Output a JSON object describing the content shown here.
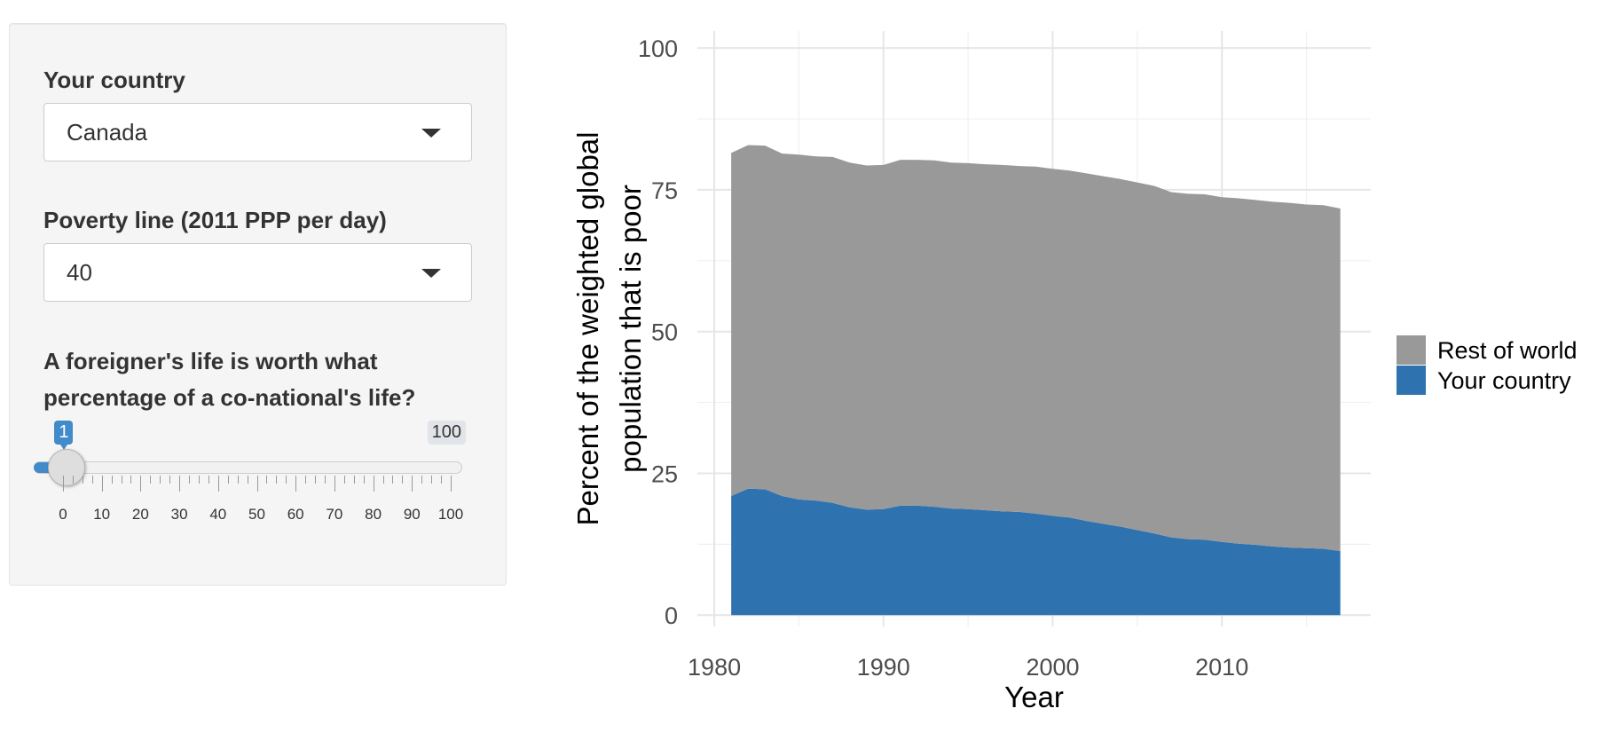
{
  "sidebar": {
    "country": {
      "label": "Your country",
      "value": "Canada"
    },
    "poverty_line": {
      "label": "Poverty line (2011 PPP per day)",
      "value": "40"
    },
    "foreign_weight": {
      "label_line1": "A foreigner's life is worth what",
      "label_line2": "percentage of a co-national's life?",
      "value": "1",
      "max_label": "100",
      "min": 0,
      "max": 100,
      "selected": 1,
      "tick_labels": [
        "0",
        "10",
        "20",
        "30",
        "40",
        "50",
        "60",
        "70",
        "80",
        "90",
        "100"
      ]
    }
  },
  "chart_data": {
    "type": "area",
    "xlabel": "Year",
    "ylabel": "Percent of the weighted global population that is poor",
    "ylabel_lines": [
      "Percent of the weighted global",
      "population that is poor"
    ],
    "xlim": [
      1979,
      2018.8
    ],
    "ylim": [
      -2,
      103
    ],
    "x_ticks": [
      1980,
      1990,
      2000,
      2010
    ],
    "y_ticks": [
      0,
      25,
      50,
      75,
      100
    ],
    "grid": true,
    "stacked": true,
    "legend_position": "right",
    "x": [
      1981,
      1982,
      1983,
      1984,
      1985,
      1986,
      1987,
      1988,
      1989,
      1990,
      1991,
      1992,
      1993,
      1994,
      1995,
      1996,
      1997,
      1998,
      1999,
      2000,
      2001,
      2002,
      2003,
      2004,
      2005,
      2006,
      2007,
      2008,
      2009,
      2010,
      2011,
      2012,
      2013,
      2014,
      2015,
      2016,
      2017
    ],
    "series": [
      {
        "name": "Your country",
        "color": "#2e73b0",
        "values": [
          21.0,
          22.3,
          22.2,
          21.0,
          20.4,
          20.2,
          19.8,
          19.0,
          18.6,
          18.7,
          19.3,
          19.3,
          19.1,
          18.8,
          18.7,
          18.5,
          18.3,
          18.2,
          17.9,
          17.5,
          17.2,
          16.6,
          16.1,
          15.6,
          15.0,
          14.4,
          13.7,
          13.4,
          13.3,
          12.9,
          12.6,
          12.4,
          12.1,
          11.9,
          11.8,
          11.7,
          11.3
        ]
      },
      {
        "name": "Rest of world",
        "color": "#999999",
        "values": [
          60.5,
          60.6,
          60.6,
          60.4,
          60.8,
          60.7,
          61.0,
          60.8,
          60.7,
          60.7,
          61.0,
          61.0,
          61.1,
          61.0,
          61.0,
          61.0,
          61.1,
          61.0,
          61.2,
          61.2,
          61.2,
          61.3,
          61.3,
          61.3,
          61.3,
          61.3,
          60.9,
          60.9,
          60.9,
          60.8,
          60.9,
          60.8,
          60.8,
          60.8,
          60.6,
          60.6,
          60.4
        ]
      }
    ],
    "legend": [
      "Rest of world",
      "Your country"
    ]
  }
}
